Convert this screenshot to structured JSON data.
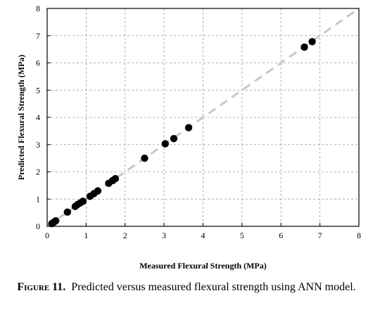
{
  "chart_data": {
    "type": "scatter",
    "title": "",
    "xlabel": "Measured Flexural Strength (MPa)",
    "ylabel": "Predicted Flexural Strength (MPa)",
    "xlim": [
      0,
      8
    ],
    "ylim": [
      0,
      8
    ],
    "xticks": [
      0,
      1,
      2,
      3,
      4,
      5,
      6,
      7,
      8
    ],
    "yticks": [
      0,
      1,
      2,
      3,
      4,
      5,
      6,
      7,
      8
    ],
    "grid": true,
    "reference_line": {
      "style": "dashed",
      "color": "#c8c8c8",
      "from": [
        0,
        0
      ],
      "to": [
        8,
        8
      ]
    },
    "marker_color": "#000000",
    "points": [
      {
        "x": 0.12,
        "y": 0.1
      },
      {
        "x": 0.17,
        "y": 0.15
      },
      {
        "x": 0.22,
        "y": 0.2
      },
      {
        "x": 0.52,
        "y": 0.52
      },
      {
        "x": 0.72,
        "y": 0.73
      },
      {
        "x": 0.78,
        "y": 0.8
      },
      {
        "x": 0.85,
        "y": 0.86
      },
      {
        "x": 0.92,
        "y": 0.92
      },
      {
        "x": 1.1,
        "y": 1.1
      },
      {
        "x": 1.2,
        "y": 1.2
      },
      {
        "x": 1.3,
        "y": 1.3
      },
      {
        "x": 1.58,
        "y": 1.58
      },
      {
        "x": 1.68,
        "y": 1.68
      },
      {
        "x": 1.75,
        "y": 1.75
      },
      {
        "x": 2.5,
        "y": 2.5
      },
      {
        "x": 3.03,
        "y": 3.03
      },
      {
        "x": 3.25,
        "y": 3.22
      },
      {
        "x": 3.63,
        "y": 3.62
      },
      {
        "x": 6.6,
        "y": 6.58
      },
      {
        "x": 6.8,
        "y": 6.78
      }
    ]
  },
  "caption": {
    "label": "Figure 11.",
    "text": "Predicted versus measured flexural strength using ANN model."
  }
}
